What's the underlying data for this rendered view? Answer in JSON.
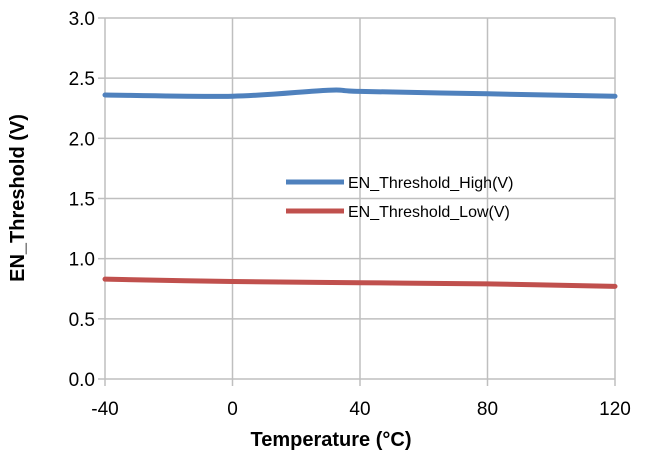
{
  "chart_data": {
    "type": "line",
    "title": "",
    "xlabel": "Temperature (°C)",
    "ylabel": "EN_Threshold (V)",
    "xlim": [
      -40,
      120
    ],
    "ylim": [
      0,
      3
    ],
    "x_ticks": [
      -40,
      0,
      40,
      80,
      120
    ],
    "x_tick_labels": [
      "-40",
      "0",
      "40",
      "80",
      "120"
    ],
    "y_ticks": [
      0,
      0.5,
      1,
      1.5,
      2,
      2.5,
      3
    ],
    "y_tick_labels": [
      "0.0",
      "0.5",
      "1.0",
      "1.5",
      "2.0",
      "2.5",
      "3.0"
    ],
    "grid": true,
    "legend_position": "center-right",
    "series": [
      {
        "name": "EN_Threshold_High(V)",
        "color": "#4F81BD",
        "x": [
          -40,
          0,
          30,
          40,
          80,
          120
        ],
        "y": [
          2.36,
          2.35,
          2.4,
          2.39,
          2.37,
          2.35
        ]
      },
      {
        "name": "EN_Threshold_Low(V)",
        "color": "#C0504D",
        "x": [
          -40,
          0,
          40,
          80,
          120
        ],
        "y": [
          0.83,
          0.81,
          0.8,
          0.79,
          0.77
        ]
      }
    ]
  }
}
